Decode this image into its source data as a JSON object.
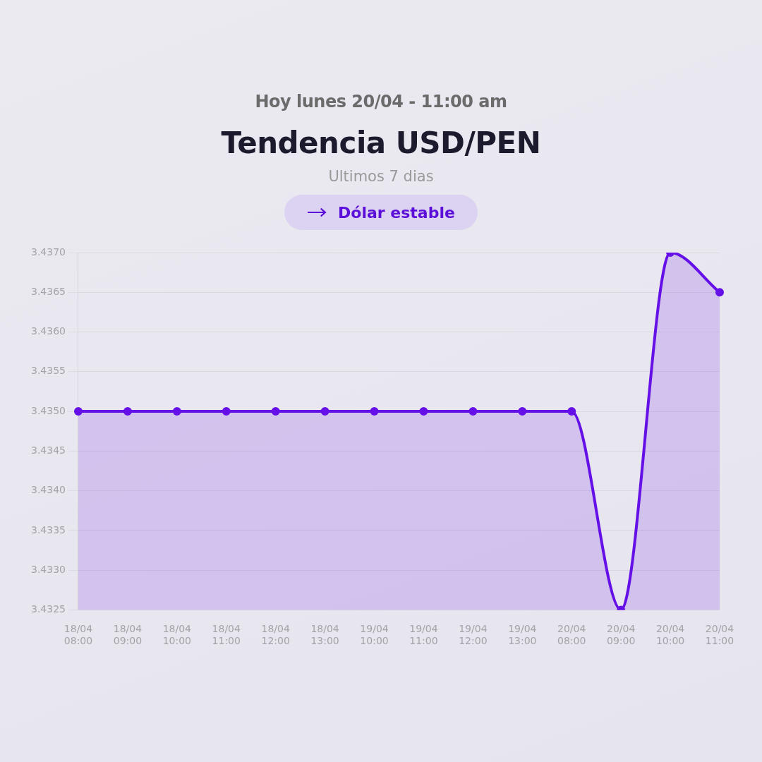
{
  "chart_data": {
    "type": "area",
    "title": "Tendencia USD/PEN",
    "subtitle": "Ultimos 7 dias",
    "annotations": [
      "Hoy lunes 20/04 - 11:00 am",
      "Dólar estable"
    ],
    "categories": [
      "18/04 08:00",
      "18/04 09:00",
      "18/04 10:00",
      "18/04 11:00",
      "18/04 12:00",
      "18/04 13:00",
      "19/04 10:00",
      "19/04 11:00",
      "19/04 12:00",
      "19/04 13:00",
      "20/04 08:00",
      "20/04 09:00",
      "20/04 10:00",
      "20/04 11:00"
    ],
    "series": [
      {
        "color": "#6610e8",
        "values": [
          3.435,
          3.435,
          3.435,
          3.435,
          3.435,
          3.435,
          3.435,
          3.435,
          3.435,
          3.435,
          3.435,
          3.4325,
          3.437,
          3.4365
        ]
      }
    ],
    "ylim": [
      3.4325,
      3.437
    ],
    "yticks": [
      {
        "value": 3.4325,
        "label": "3.4325"
      },
      {
        "value": 3.433,
        "label": "3.4330"
      },
      {
        "value": 3.4335,
        "label": "3.4335"
      },
      {
        "value": 3.434,
        "label": "3.4340"
      },
      {
        "value": 3.4345,
        "label": "3.4345"
      },
      {
        "value": 3.435,
        "label": "3.4350"
      },
      {
        "value": 3.4355,
        "label": "3.4355"
      },
      {
        "value": 3.436,
        "label": "3.4360"
      },
      {
        "value": 3.4365,
        "label": "3.4365"
      },
      {
        "value": 3.437,
        "label": "3.4370"
      }
    ],
    "grid": "y",
    "marker": "circle",
    "line_style": "solid"
  }
}
